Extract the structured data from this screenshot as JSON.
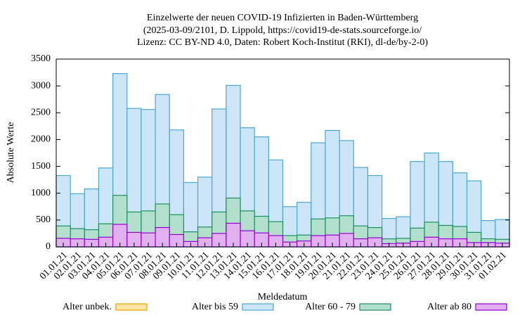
{
  "chart_data": {
    "type": "bar",
    "title": [
      "Einzelwerte der neuen COVID-19 Infizierten in Baden-Württemberg",
      "(2025-03-09/2101, D. Lippold, https://covid19-de-stats.sourceforge.io/",
      "Lizenz: CC BY-ND 4.0, Daten: Robert Koch-Institut (RKI), dl-de/by-2-0)"
    ],
    "x_label": "Meldedatum",
    "y_label": "Absolute Werte",
    "categories": [
      "01.01.21",
      "02.01.21",
      "03.01.21",
      "04.01.21",
      "05.01.21",
      "06.01.21",
      "07.01.21",
      "08.01.21",
      "09.01.21",
      "10.01.21",
      "11.01.21",
      "12.01.21",
      "13.01.21",
      "14.01.21",
      "15.01.21",
      "16.01.21",
      "17.01.21",
      "18.01.21",
      "19.01.21",
      "20.01.21",
      "21.01.21",
      "22.01.21",
      "23.01.21",
      "24.01.21",
      "25.01.21",
      "26.01.21",
      "27.01.21",
      "28.01.21",
      "29.01.21",
      "30.01.21",
      "31.01.21",
      "01.02.21"
    ],
    "series": [
      {
        "name": "Alter unbek.",
        "color": "#fde6a8",
        "stroke": "#e8a000",
        "values": [
          0,
          0,
          0,
          0,
          0,
          0,
          0,
          0,
          0,
          0,
          0,
          0,
          0,
          0,
          0,
          0,
          0,
          0,
          0,
          0,
          0,
          0,
          0,
          0,
          0,
          0,
          0,
          0,
          0,
          0,
          0,
          0
        ]
      },
      {
        "name": "Alter bis 59",
        "color": "#cce6f8",
        "stroke": "#4aa8d8",
        "values": [
          1330,
          990,
          1080,
          1470,
          3230,
          2580,
          2560,
          2840,
          2180,
          1200,
          1300,
          2570,
          3010,
          2220,
          2050,
          1620,
          750,
          830,
          1940,
          2170,
          1980,
          1480,
          1330,
          530,
          560,
          1590,
          1750,
          1590,
          1380,
          1230,
          490,
          510
        ]
      },
      {
        "name": "Alter 60 - 79",
        "color": "#b3e0cc",
        "stroke": "#1a9060",
        "values": [
          390,
          340,
          320,
          430,
          960,
          650,
          670,
          800,
          600,
          280,
          370,
          650,
          910,
          670,
          570,
          470,
          210,
          220,
          520,
          540,
          580,
          390,
          360,
          150,
          160,
          350,
          460,
          400,
          380,
          270,
          150,
          140
        ]
      },
      {
        "name": "Alter ab 80",
        "color": "#e0b0f0",
        "stroke": "#9400d3",
        "values": [
          160,
          150,
          140,
          180,
          420,
          270,
          260,
          360,
          230,
          100,
          170,
          250,
          440,
          300,
          260,
          210,
          90,
          110,
          210,
          220,
          250,
          150,
          170,
          60,
          70,
          100,
          180,
          150,
          150,
          80,
          80,
          70
        ]
      }
    ],
    "ylim": [
      0,
      3500
    ],
    "yticks": [
      0,
      500,
      1000,
      1500,
      2000,
      2500,
      3000,
      3500
    ]
  }
}
